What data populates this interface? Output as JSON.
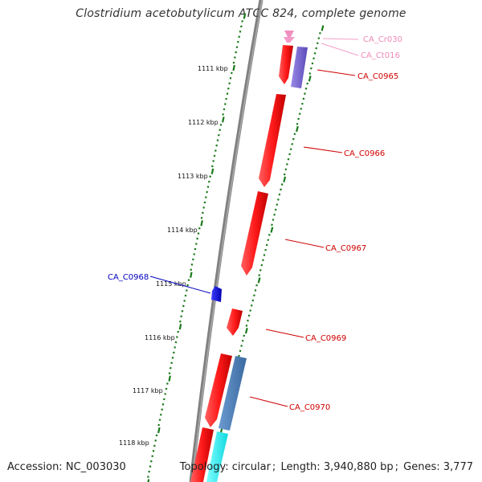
{
  "title": "Clostridium acetobutylicum ATCC 824, complete genome",
  "footer": {
    "accession_label": "Accession:",
    "accession": "NC_003030",
    "topology_label": "Topology:",
    "topology": "circular",
    "length_label": "Length:",
    "length": "3,940,880 bp",
    "genes_label": "Genes:",
    "genes": "3,777"
  },
  "scale_labels": [
    "1111 kbp",
    "1112 kbp",
    "1113 kbp",
    "1114 kbp",
    "1115 kbp",
    "1116 kbp",
    "1117 kbp",
    "1118 kbp"
  ],
  "features": [
    {
      "label": "CA_Cr030",
      "color": "#f4a0c8",
      "strand": "+"
    },
    {
      "label": "CA_Ct016",
      "color": "#f4a0c8",
      "strand": "+"
    },
    {
      "label": "CA_C0965",
      "color": "#e00000",
      "strand": "+"
    },
    {
      "label": "CA_C0966",
      "color": "#e00000",
      "strand": "+"
    },
    {
      "label": "CA_C0967",
      "color": "#e00000",
      "strand": "+"
    },
    {
      "label": "CA_C0968",
      "color": "#0000c8",
      "strand": "-"
    },
    {
      "label": "CA_C0969",
      "color": "#e00000",
      "strand": "+"
    },
    {
      "label": "CA_C0970",
      "color": "#e00000",
      "strand": "+"
    }
  ],
  "colors": {
    "backbone": "#888888",
    "tick": "#1a7a1a",
    "cds_red": "#ff1a1a",
    "cds_blue": "#1a1aff",
    "pink": "#f090c0",
    "lavender": "#7a6ad0",
    "steel_blue": "#4a7ab0",
    "cyan": "#20f0f0"
  }
}
